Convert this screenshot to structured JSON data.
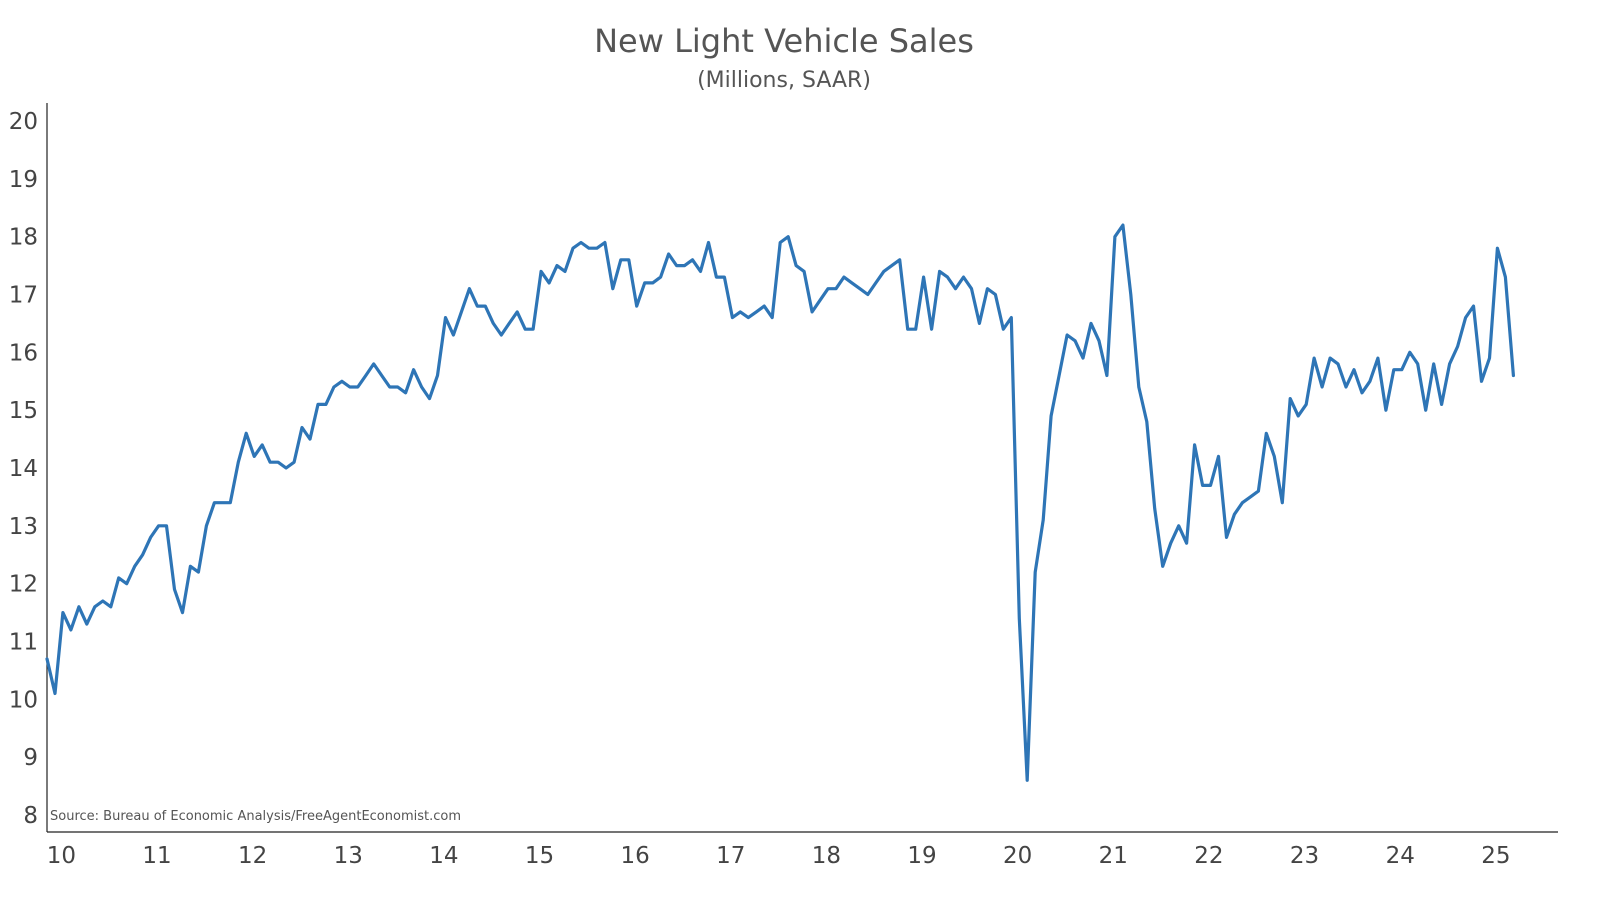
{
  "chart_data": {
    "type": "line",
    "title": "New Light Vehicle Sales",
    "subtitle": "(Millions, SAAR)",
    "source": "Source: Bureau of Economic Analysis/FreeAgentEconomist.com",
    "xlabel": "",
    "ylabel": "",
    "xlim": [
      2010.0,
      2025.8
    ],
    "ylim": [
      8,
      20
    ],
    "y_ticks": [
      "8",
      "9",
      "10",
      "11",
      "12",
      "13",
      "14",
      "15",
      "16",
      "17",
      "18",
      "19",
      "20"
    ],
    "x_ticks": [
      "10",
      "11",
      "12",
      "13",
      "14",
      "15",
      "16",
      "17",
      "18",
      "19",
      "20",
      "21",
      "22",
      "23",
      "24",
      "25"
    ],
    "grid": false,
    "line_color": "#2e75b6",
    "x_start": "2010-01",
    "x_frequency": "monthly",
    "series": [
      {
        "values": [
          10.7,
          10.1,
          11.5,
          11.2,
          11.6,
          11.3,
          11.6,
          11.7,
          11.6,
          12.1,
          12.0,
          12.3,
          12.5,
          12.8,
          13.0,
          13.0,
          11.9,
          11.5,
          12.3,
          12.2,
          13.0,
          13.4,
          13.4,
          13.4,
          14.1,
          14.6,
          14.2,
          14.4,
          14.1,
          14.1,
          14.0,
          14.1,
          14.7,
          14.5,
          15.1,
          15.1,
          15.4,
          15.5,
          15.4,
          15.4,
          15.6,
          15.8,
          15.6,
          15.4,
          15.4,
          15.3,
          15.7,
          15.4,
          15.2,
          15.6,
          16.6,
          16.3,
          16.7,
          17.1,
          16.8,
          16.8,
          16.5,
          16.3,
          16.5,
          16.7,
          16.4,
          16.4,
          17.4,
          17.2,
          17.5,
          17.4,
          17.8,
          17.9,
          17.8,
          17.8,
          17.9,
          17.1,
          17.6,
          17.6,
          16.8,
          17.2,
          17.2,
          17.3,
          17.7,
          17.5,
          17.5,
          17.6,
          17.4,
          17.9,
          17.3,
          17.3,
          16.6,
          16.7,
          16.6,
          16.7,
          16.8,
          16.6,
          17.9,
          18.0,
          17.5,
          17.4,
          16.7,
          16.9,
          17.1,
          17.1,
          17.3,
          17.2,
          17.1,
          17.0,
          17.2,
          17.4,
          17.5,
          17.6,
          16.4,
          16.4,
          17.3,
          16.4,
          17.4,
          17.3,
          17.1,
          17.3,
          17.1,
          16.5,
          17.1,
          17.0,
          16.4,
          16.6,
          11.4,
          8.6,
          12.2,
          13.1,
          14.9,
          15.6,
          16.3,
          16.2,
          15.9,
          16.5,
          16.2,
          15.6,
          18.0,
          18.2,
          17.0,
          15.4,
          14.8,
          13.3,
          12.3,
          12.7,
          13.0,
          12.7,
          14.4,
          13.7,
          13.7,
          14.2,
          12.8,
          13.2,
          13.4,
          13.5,
          13.6,
          14.6,
          14.2,
          13.4,
          15.2,
          14.9,
          15.1,
          15.9,
          15.4,
          15.9,
          15.8,
          15.4,
          15.7,
          15.3,
          15.5,
          15.9,
          15.0,
          15.7,
          15.7,
          16.0,
          15.8,
          15.0,
          15.8,
          15.1,
          15.8,
          16.1,
          16.6,
          16.8,
          15.5,
          15.9,
          17.8,
          17.3,
          15.6
        ]
      }
    ]
  }
}
